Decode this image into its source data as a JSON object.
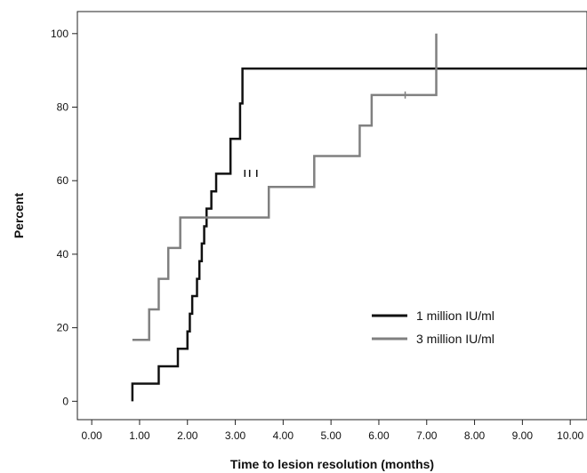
{
  "chart_data": {
    "type": "line",
    "step": true,
    "xlabel": "Time to lesion resolution (months)",
    "ylabel": "Percent",
    "xlim": [
      -0.3,
      10.35
    ],
    "ylim": [
      -5,
      106
    ],
    "xticks": [
      0,
      1,
      2,
      3,
      4,
      5,
      6,
      7,
      8,
      9,
      10
    ],
    "xtick_labels": [
      "0.00",
      "1.00",
      "2.00",
      "3.00",
      "4.00",
      "5.00",
      "6.00",
      "7.00",
      "8.00",
      "9.00",
      "10.00"
    ],
    "yticks": [
      0,
      20,
      40,
      60,
      80,
      100
    ],
    "ytick_labels": [
      "0",
      "20",
      "40",
      "60",
      "80",
      "100"
    ],
    "grid": false,
    "legend_position": "lower-right",
    "series": [
      {
        "name": "1 million IU/ml",
        "color": "#111111",
        "x": [
          0.85,
          0.85,
          1.4,
          1.8,
          2.0,
          2.05,
          2.1,
          2.2,
          2.25,
          2.3,
          2.35,
          2.4,
          2.5,
          2.6,
          2.8,
          2.9,
          3.1,
          3.15,
          4.2,
          5.5,
          7.8,
          10.35
        ],
        "y": [
          0,
          4.8,
          9.5,
          14.3,
          19.0,
          23.8,
          28.6,
          33.3,
          38.1,
          42.9,
          47.6,
          52.4,
          57.1,
          61.9,
          61.9,
          71.4,
          81.0,
          90.5,
          90.5,
          90.5,
          90.5,
          90.5
        ]
      },
      {
        "name": "3 million IU/ml",
        "color": "#808080",
        "x": [
          0.85,
          1.2,
          1.4,
          1.6,
          1.85,
          3.7,
          4.65,
          5.6,
          5.85,
          7.2,
          7.2
        ],
        "y": [
          16.7,
          25.0,
          33.3,
          41.7,
          50.0,
          58.3,
          66.7,
          75.0,
          83.3,
          83.3,
          100
        ]
      }
    ],
    "censor_marks": [
      {
        "series": 0,
        "x": [
          3.2,
          3.3,
          3.45
        ],
        "y": 62
      },
      {
        "series": 1,
        "x": [
          6.55
        ],
        "y": 83.3
      }
    ]
  }
}
